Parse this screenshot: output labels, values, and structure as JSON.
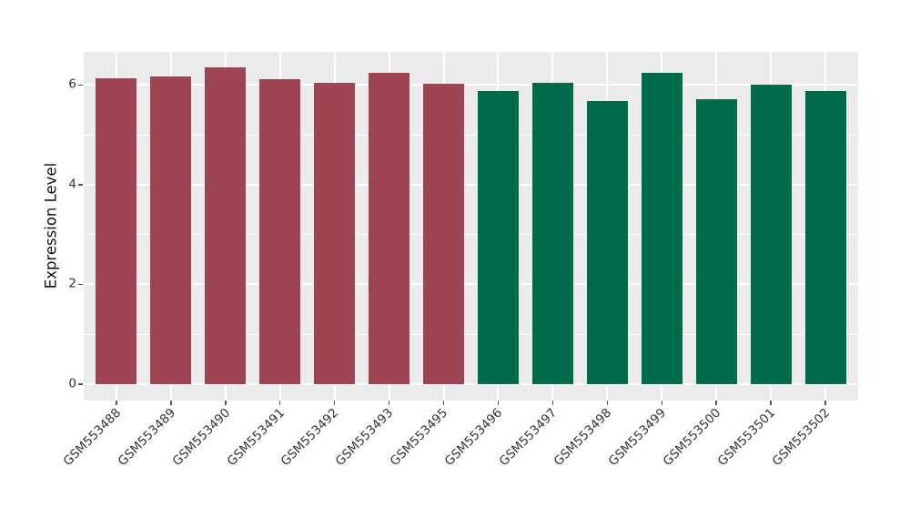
{
  "figure": {
    "title": "",
    "background": "#FFFFFF"
  },
  "chart_data": {
    "type": "bar",
    "title": "",
    "xlabel": "",
    "ylabel": "Expression Level",
    "categories": [
      "GSM553488",
      "GSM553489",
      "GSM553490",
      "GSM553491",
      "GSM553492",
      "GSM553493",
      "GSM553495",
      "GSM553496",
      "GSM553497",
      "GSM553498",
      "GSM553499",
      "GSM553500",
      "GSM553501",
      "GSM553502"
    ],
    "values": [
      6.14,
      6.17,
      6.36,
      6.12,
      6.04,
      6.24,
      6.02,
      5.87,
      6.04,
      5.68,
      6.24,
      5.71,
      6.01,
      5.88
    ],
    "bar_groups": [
      "red",
      "red",
      "red",
      "red",
      "red",
      "red",
      "red",
      "green",
      "green",
      "green",
      "green",
      "green",
      "green",
      "green"
    ],
    "group_colors": {
      "red": "#9E4452",
      "green": "#006B4A"
    },
    "yticks": [
      0,
      2,
      4,
      6
    ],
    "yticks_minor": [
      1,
      3,
      5
    ],
    "ylim": [
      -0.33,
      6.66
    ],
    "xtick_rotation_deg": 45,
    "legend": "none",
    "style": {
      "panel_bg": "#EBEBEB",
      "grid_color": "#FFFFFF",
      "tick_label_color": "#333333",
      "axis_label_color": "#111111",
      "grid": "horizontal major at 0/2/4/6, horizontal minor at 1/3/5, vertical major at each bar center"
    }
  }
}
